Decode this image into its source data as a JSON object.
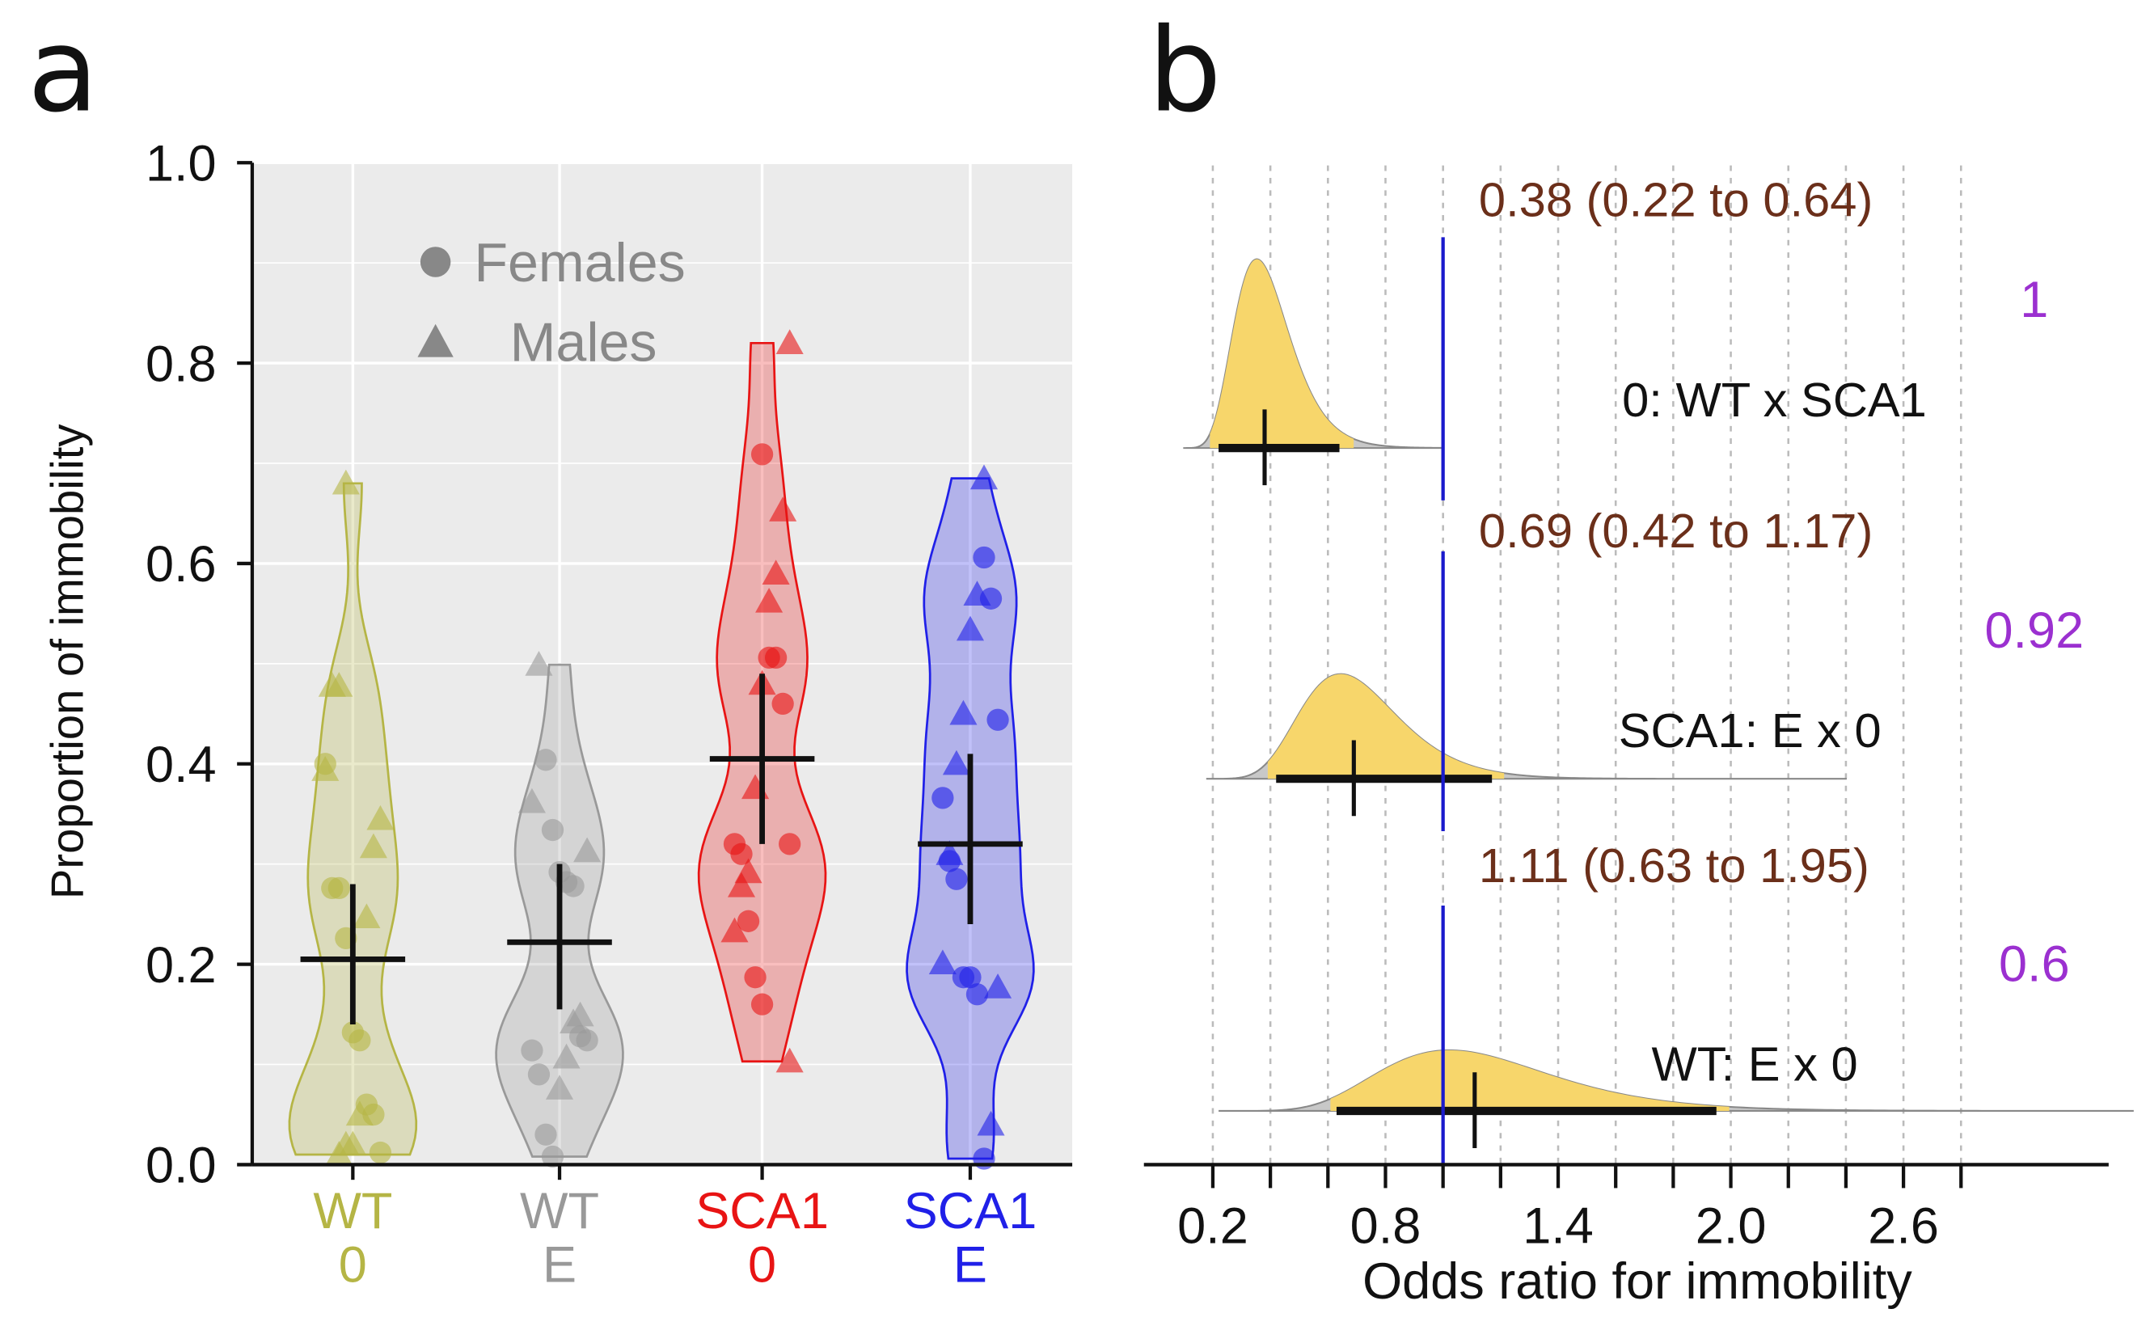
{
  "panel_labels": {
    "a": "a",
    "b": "b"
  },
  "chart_data": [
    {
      "type": "violin",
      "ylabel": "Proportion of immobility",
      "ylim": [
        0,
        1
      ],
      "yticks": [
        "0.0",
        "0.2",
        "0.4",
        "0.6",
        "0.8",
        "1.0"
      ],
      "grid": true,
      "background": "#ebebeb",
      "legend": {
        "placement": "top-left",
        "items": [
          {
            "label": "Females",
            "shape": "circle"
          },
          {
            "label": "Males",
            "shape": "triangle"
          }
        ],
        "color": "#888888"
      },
      "groups": [
        {
          "line1": "WT",
          "line2": "0",
          "color": "#b5b545",
          "mean": 0.205,
          "ci": [
            0.14,
            0.28
          ],
          "females": [
            0.4,
            0.276,
            0.276,
            0.226,
            0.132,
            0.124,
            0.06,
            0.05,
            0.012
          ],
          "males": [
            0.68,
            0.478,
            0.478,
            0.394,
            0.345,
            0.317,
            0.247,
            0.05,
            0.02,
            0.02,
            0.01
          ]
        },
        {
          "line1": "WT",
          "line2": "E",
          "color": "#999999",
          "mean": 0.222,
          "ci": [
            0.155,
            0.3
          ],
          "females": [
            0.404,
            0.334,
            0.292,
            0.282,
            0.278,
            0.128,
            0.124,
            0.114,
            0.09,
            0.03,
            0.008
          ],
          "males": [
            0.499,
            0.362,
            0.313,
            0.149,
            0.142,
            0.107,
            0.076
          ]
        },
        {
          "line1": "SCA1",
          "line2": "0",
          "color": "#e81414",
          "mean": 0.405,
          "ci": [
            0.32,
            0.49
          ],
          "females": [
            0.709,
            0.506,
            0.506,
            0.46,
            0.32,
            0.32,
            0.31,
            0.243,
            0.187,
            0.16
          ],
          "males": [
            0.82,
            0.653,
            0.59,
            0.562,
            0.48,
            0.376,
            0.292,
            0.278,
            0.233,
            0.103
          ]
        },
        {
          "line1": "SCA1",
          "line2": "E",
          "color": "#2020e8",
          "mean": 0.32,
          "ci": [
            0.24,
            0.41
          ],
          "females": [
            0.606,
            0.565,
            0.444,
            0.366,
            0.303,
            0.285,
            0.187,
            0.187,
            0.17,
            0.006
          ],
          "males": [
            0.685,
            0.569,
            0.534,
            0.45,
            0.4,
            0.31,
            0.201,
            0.177,
            0.04
          ]
        }
      ]
    },
    {
      "type": "density",
      "xlabel": "Odds ratio for immobility",
      "xticks": [
        "0.2",
        "0.8",
        "1.4",
        "2.0",
        "2.6"
      ],
      "xlim": [
        0.2,
        2.8
      ],
      "reference_line": 1.0,
      "reference_color": "#1a1acc",
      "fill_color": "#f7d66b",
      "tail_color": "#c8c8c8",
      "estimate_color": "#6b2f1a",
      "probability_color": "#9b30d0",
      "rows": [
        {
          "label": "0: WT x SCA1",
          "estimate_text": "0.38 (0.22 to 0.64)",
          "median": 0.38,
          "ci": [
            0.22,
            0.64
          ],
          "probability": "1"
        },
        {
          "label": "SCA1: E x 0",
          "estimate_text": "0.69 (0.42 to 1.17)",
          "median": 0.69,
          "ci": [
            0.42,
            1.17
          ],
          "probability": "0.92"
        },
        {
          "label": "WT: E x 0",
          "estimate_text": "1.11 (0.63 to 1.95)",
          "median": 1.11,
          "ci": [
            0.63,
            1.95
          ],
          "probability": "0.6"
        }
      ]
    }
  ]
}
